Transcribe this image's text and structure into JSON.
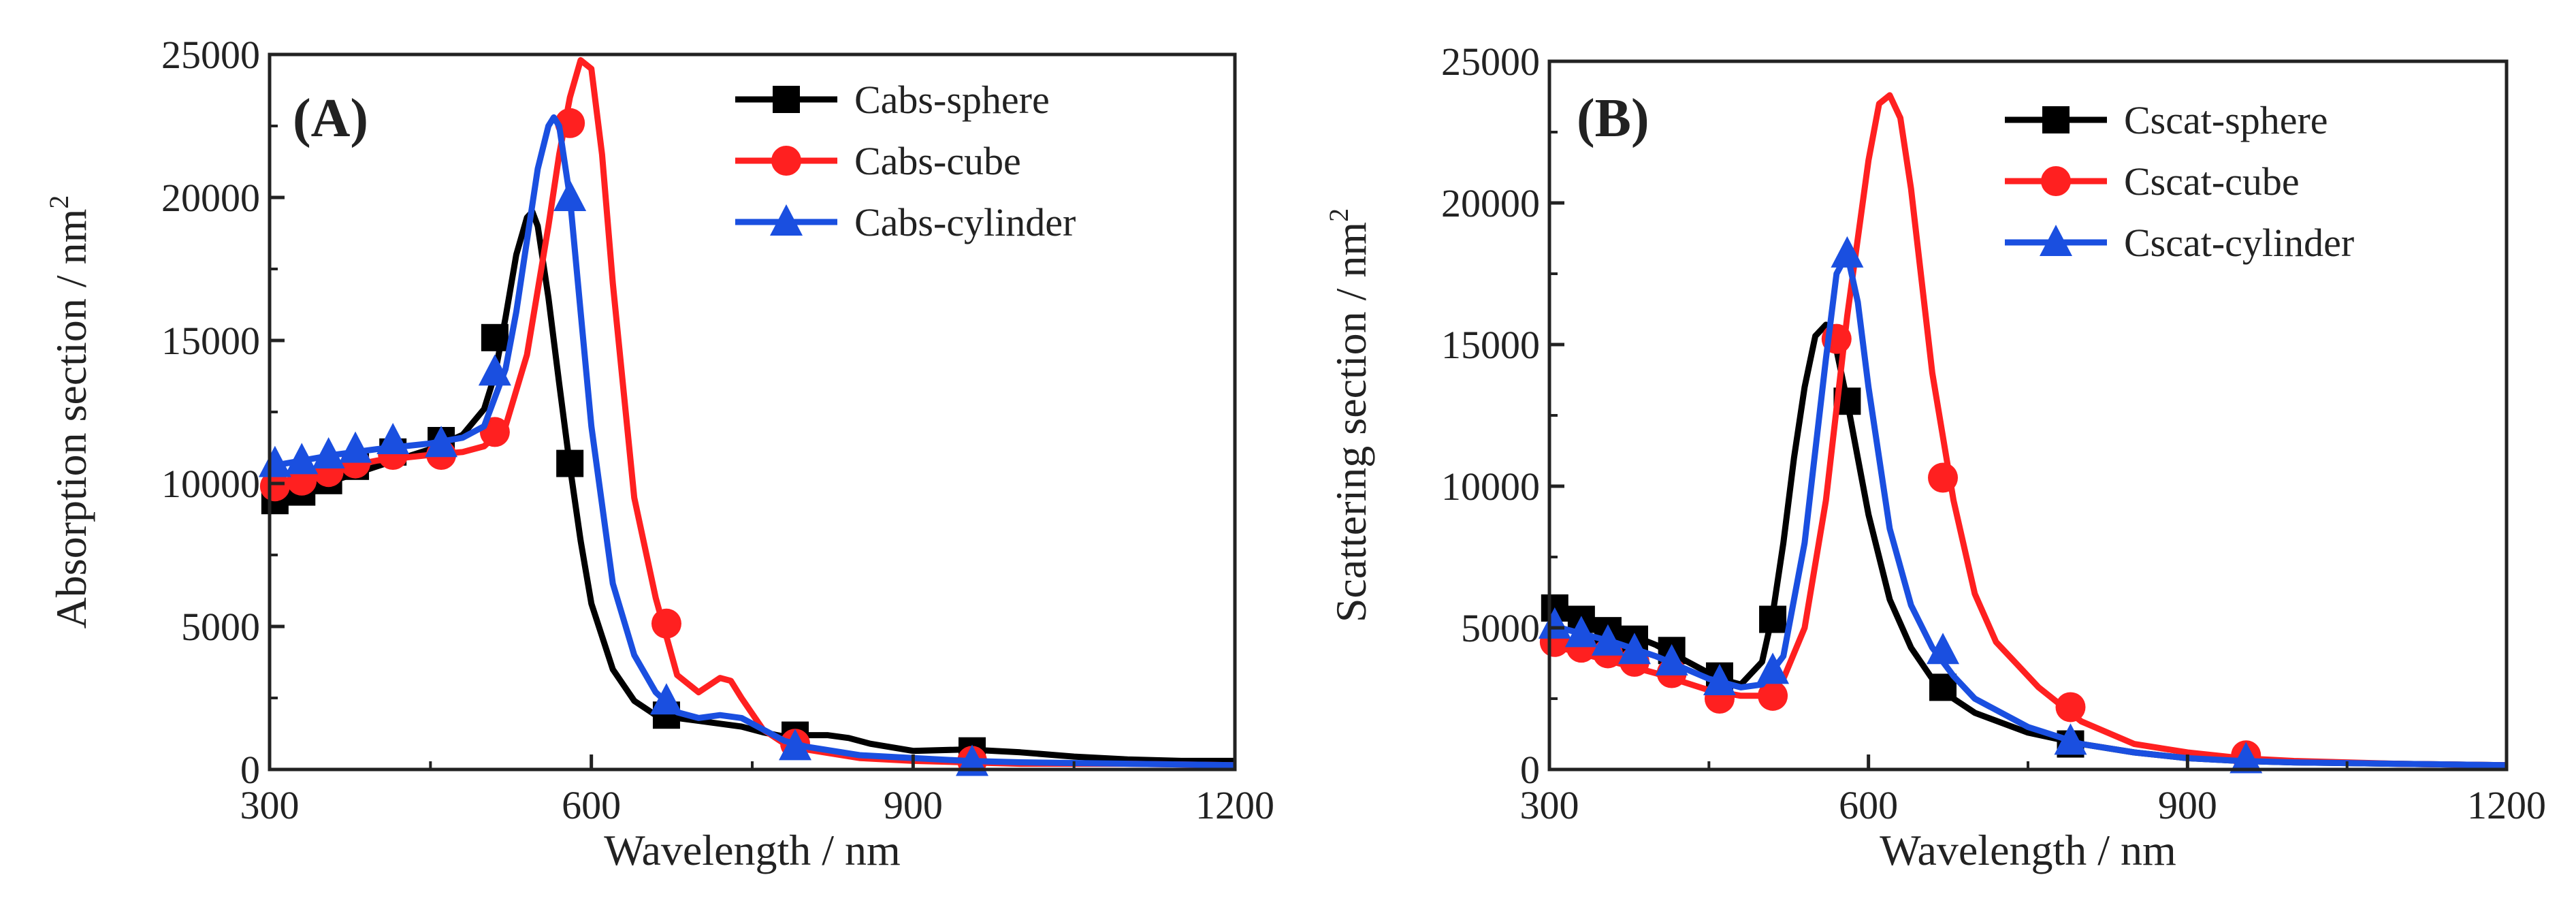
{
  "chart_data": [
    {
      "type": "line",
      "panel_label": "(A)",
      "xlabel": "Wavelength / nm",
      "ylabel": "Absorption section / nm",
      "ylabel_superscript": "2",
      "xlim": [
        300,
        1200
      ],
      "ylim": [
        0,
        25000
      ],
      "xticks": [
        300,
        600,
        900,
        1200
      ],
      "yticks": [
        0,
        5000,
        10000,
        15000,
        20000,
        25000
      ],
      "grid": false,
      "legend_position": "top-right",
      "series": [
        {
          "name": "Cabs-sphere",
          "color": "#000000",
          "marker": "square",
          "x": [
            300,
            330,
            360,
            400,
            450,
            480,
            500,
            510,
            520,
            530,
            540,
            545,
            550,
            560,
            570,
            580,
            590,
            600,
            620,
            640,
            660,
            680,
            700,
            720,
            740,
            760,
            780,
            800,
            820,
            840,
            860,
            900,
            950,
            1000,
            1050,
            1100,
            1150,
            1200
          ],
          "y": [
            9300,
            9700,
            10100,
            10600,
            11200,
            11700,
            12600,
            13800,
            15800,
            18000,
            19300,
            19500,
            19000,
            16500,
            13500,
            10600,
            8000,
            5800,
            3500,
            2400,
            1900,
            1800,
            1700,
            1600,
            1500,
            1300,
            1150,
            1200,
            1200,
            1100,
            900,
            650,
            700,
            600,
            450,
            350,
            300,
            300
          ],
          "marker_x": [
            305,
            330,
            355,
            380,
            415,
            460,
            510,
            580,
            670,
            790,
            955
          ],
          "marker_y": [
            9400,
            9700,
            10100,
            10600,
            11100,
            11500,
            15100,
            10700,
            1900,
            1200,
            650
          ]
        },
        {
          "name": "Cabs-cube",
          "color": "#ff2020",
          "marker": "circle",
          "x": [
            300,
            330,
            360,
            400,
            450,
            480,
            500,
            520,
            540,
            560,
            570,
            580,
            590,
            600,
            610,
            620,
            640,
            660,
            680,
            700,
            720,
            730,
            740,
            760,
            780,
            800,
            850,
            900,
            950,
            1000,
            1100,
            1200
          ],
          "y": [
            9900,
            10200,
            10500,
            10800,
            11000,
            11100,
            11300,
            12000,
            14500,
            19000,
            21500,
            23500,
            24800,
            24500,
            21500,
            17000,
            9500,
            6000,
            3300,
            2700,
            3200,
            3100,
            2500,
            1400,
            900,
            700,
            400,
            300,
            250,
            200,
            200,
            150
          ],
          "marker_x": [
            305,
            330,
            355,
            380,
            415,
            460,
            510,
            580,
            670,
            790,
            955
          ],
          "marker_y": [
            9900,
            10100,
            10400,
            10700,
            11000,
            11000,
            11800,
            22600,
            5100,
            900,
            300
          ]
        },
        {
          "name": "Cabs-cylinder",
          "color": "#1a4fe0",
          "marker": "triangle",
          "x": [
            300,
            330,
            360,
            400,
            450,
            480,
            500,
            520,
            530,
            540,
            550,
            560,
            565,
            570,
            580,
            590,
            600,
            620,
            640,
            660,
            680,
            700,
            720,
            740,
            760,
            780,
            800,
            850,
            900,
            950,
            1000,
            1100,
            1200
          ],
          "y": [
            10600,
            10800,
            11000,
            11200,
            11400,
            11600,
            12000,
            14000,
            16000,
            18500,
            21000,
            22500,
            22800,
            22500,
            20000,
            16000,
            12000,
            6500,
            4000,
            2700,
            2000,
            1800,
            1900,
            1800,
            1400,
            1000,
            800,
            500,
            400,
            300,
            250,
            200,
            150
          ],
          "marker_x": [
            305,
            330,
            355,
            380,
            415,
            460,
            510,
            580,
            670,
            790,
            955
          ],
          "marker_y": [
            10700,
            10800,
            11000,
            11200,
            11500,
            11400,
            13900,
            20000,
            2400,
            800,
            250
          ]
        }
      ]
    },
    {
      "type": "line",
      "panel_label": "(B)",
      "xlabel": "Wavelength / nm",
      "ylabel": "Scattering section / nm",
      "ylabel_superscript": "2",
      "xlim": [
        300,
        1200
      ],
      "ylim": [
        0,
        25000
      ],
      "xticks": [
        300,
        600,
        900,
        1200
      ],
      "yticks": [
        0,
        5000,
        10000,
        15000,
        20000,
        25000
      ],
      "grid": false,
      "legend_position": "top-right",
      "series": [
        {
          "name": "Cscat-sphere",
          "color": "#000000",
          "marker": "square",
          "x": [
            300,
            330,
            360,
            400,
            430,
            460,
            480,
            500,
            510,
            520,
            530,
            540,
            550,
            560,
            570,
            580,
            590,
            600,
            620,
            640,
            660,
            680,
            700,
            750,
            800,
            850,
            900,
            950,
            1000,
            1100,
            1200
          ],
          "y": [
            5800,
            5400,
            5000,
            4400,
            3800,
            3200,
            3000,
            3800,
            5500,
            8000,
            11000,
            13500,
            15300,
            15700,
            14800,
            13000,
            11000,
            9000,
            6000,
            4300,
            3200,
            2500,
            2000,
            1300,
            900,
            600,
            400,
            300,
            250,
            200,
            150
          ],
          "marker_x": [
            305,
            330,
            355,
            380,
            415,
            460,
            510,
            580,
            670,
            790
          ],
          "marker_y": [
            5700,
            5300,
            4900,
            4600,
            4200,
            3300,
            5300,
            13000,
            2900,
            900
          ]
        },
        {
          "name": "Cscat-cube",
          "color": "#ff2020",
          "marker": "circle",
          "x": [
            300,
            330,
            360,
            400,
            450,
            480,
            500,
            520,
            540,
            560,
            580,
            600,
            610,
            620,
            630,
            640,
            660,
            680,
            700,
            720,
            740,
            760,
            780,
            800,
            850,
            900,
            950,
            1000,
            1100,
            1200
          ],
          "y": [
            4400,
            4100,
            3800,
            3400,
            2800,
            2600,
            2600,
            3200,
            5000,
            9500,
            16000,
            21500,
            23500,
            23800,
            23000,
            20500,
            14000,
            9500,
            6200,
            4500,
            3700,
            2900,
            2300,
            1700,
            900,
            600,
            400,
            300,
            200,
            150
          ],
          "marker_x": [
            305,
            330,
            355,
            380,
            415,
            460,
            510,
            570,
            670,
            790,
            955
          ],
          "marker_y": [
            4500,
            4300,
            4100,
            3800,
            3400,
            2500,
            2600,
            15200,
            10300,
            2200,
            500
          ]
        },
        {
          "name": "Cscat-cylinder",
          "color": "#1a4fe0",
          "marker": "triangle",
          "x": [
            300,
            330,
            360,
            400,
            450,
            480,
            500,
            520,
            540,
            560,
            570,
            580,
            590,
            600,
            620,
            640,
            660,
            680,
            700,
            750,
            800,
            850,
            900,
            950,
            1000,
            1100,
            1200
          ],
          "y": [
            5100,
            4800,
            4500,
            4000,
            3200,
            2900,
            3000,
            4000,
            8000,
            14500,
            17500,
            18200,
            16500,
            13500,
            8500,
            5800,
            4300,
            3300,
            2500,
            1500,
            900,
            600,
            400,
            300,
            250,
            200,
            150
          ],
          "marker_x": [
            305,
            330,
            355,
            380,
            415,
            460,
            510,
            580,
            670,
            790,
            955
          ],
          "marker_y": [
            5100,
            4800,
            4500,
            4200,
            3800,
            3100,
            3500,
            18200,
            4200,
            1000,
            350
          ]
        }
      ]
    }
  ]
}
